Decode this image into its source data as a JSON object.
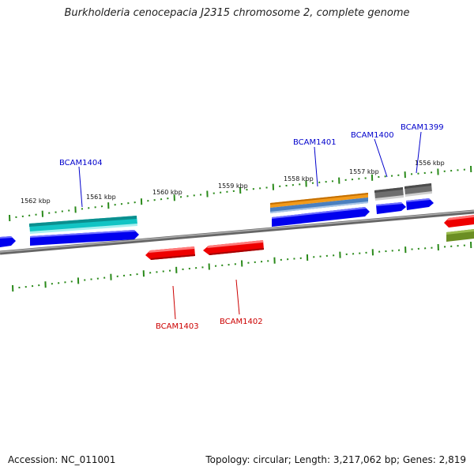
{
  "title": "Burkholderia cenocepacia J2315 chromosome 2, complete genome",
  "footer": {
    "accession": "Accession: NC_011001",
    "summary": "Topology: circular; Length: 3,217,062 bp; Genes: 2,819"
  },
  "scale_labels": [
    "1562 kbp",
    "1561 kbp",
    "1560 kbp",
    "1559 kbp",
    "1558 kbp",
    "1557 kbp",
    "1556 kbp"
  ],
  "gene_labels": [
    {
      "text": "BCAM1404",
      "strand": "forward"
    },
    {
      "text": "BCAM1401",
      "strand": "forward"
    },
    {
      "text": "BCAM1400",
      "strand": "forward"
    },
    {
      "text": "BCAM1399",
      "strand": "forward"
    },
    {
      "text": "BCAM1403",
      "strand": "reverse"
    },
    {
      "text": "BCAM1402",
      "strand": "reverse"
    }
  ],
  "colors": {
    "forward_label": "#0000cc",
    "reverse_label": "#cc0000",
    "backbone": "#808080",
    "ticks": "#2a8a1a",
    "cds_forward": "#0000ee",
    "cds_reverse": "#ee0000",
    "cyan": "#12c4c4",
    "orange": "#f29a1a",
    "steel": "#4a7fbf",
    "gray_feature": "#707070",
    "olive": "#6b8e23"
  }
}
